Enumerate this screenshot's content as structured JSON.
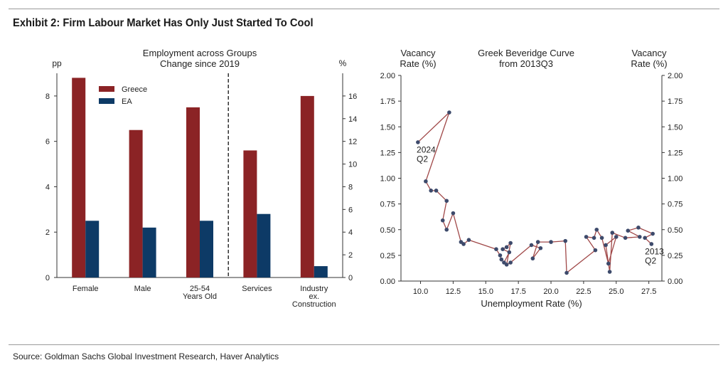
{
  "exhibit_title": "Exhibit 2: Firm Labour Market Has Only Just Started To Cool",
  "source": "Source: Goldman Sachs Global Investment Research, Haver Analytics",
  "colors": {
    "greece": "#8b2325",
    "ea": "#0d3a66",
    "line": "#a04848",
    "marker": "#3d4a6b"
  },
  "chart_data": [
    {
      "type": "bar",
      "title": [
        "Employment across Groups",
        "Change since 2019"
      ],
      "left_unit": "pp",
      "right_unit": "%",
      "categories": [
        [
          "Female"
        ],
        [
          "Male"
        ],
        [
          "25-54",
          "Years Old"
        ],
        [
          "Services"
        ],
        [
          "Industry",
          "ex.",
          "Construction"
        ]
      ],
      "ylim_left": [
        0,
        9
      ],
      "ylim_right": [
        0,
        18
      ],
      "yticks_left": [
        0,
        2,
        4,
        6,
        8
      ],
      "yticks_right": [
        0,
        2,
        4,
        6,
        8,
        10,
        12,
        14,
        16
      ],
      "divider_after_index": 2,
      "legend": "top-left",
      "series": [
        {
          "name": "Greece",
          "axis": "left",
          "values": [
            8.8,
            6.5,
            7.5,
            null,
            null
          ]
        },
        {
          "name": "EA",
          "axis": "left",
          "values": [
            2.5,
            2.2,
            2.5,
            null,
            null
          ]
        },
        {
          "name": "Greece",
          "axis": "right",
          "values": [
            null,
            null,
            null,
            11.2,
            16.0
          ]
        },
        {
          "name": "EA",
          "axis": "right",
          "values": [
            null,
            null,
            null,
            5.6,
            1.0
          ]
        }
      ]
    },
    {
      "type": "line",
      "title": [
        "Greek Beveridge Curve",
        "from 2013Q3"
      ],
      "left_axis_title": [
        "Vacancy",
        "Rate (%)"
      ],
      "right_axis_title": [
        "Vacancy",
        "Rate (%)"
      ],
      "xlabel": "Unemployment Rate (%)",
      "xlim": [
        8.5,
        28.5
      ],
      "ylim": [
        0,
        2.0
      ],
      "xticks": [
        "10.0",
        "12.5",
        "15.0",
        "17.5",
        "20.0",
        "22.5",
        "25.0",
        "27.5"
      ],
      "yticks": [
        "0.00",
        "0.25",
        "0.50",
        "0.75",
        "1.00",
        "1.25",
        "1.50",
        "1.75",
        "2.00"
      ],
      "annotations": [
        {
          "lines": [
            "2024",
            "Q2"
          ],
          "x": 9.7,
          "y": 1.25
        },
        {
          "lines": [
            "2013",
            "Q2"
          ],
          "x": 27.2,
          "y": 0.26
        }
      ],
      "x": [
        27.7,
        27.2,
        27.8,
        26.7,
        25.9,
        26.8,
        25.7,
        24.7,
        24.5,
        24.2,
        25.0,
        24.4,
        23.9,
        23.5,
        23.3,
        22.7,
        23.4,
        21.2,
        21.1,
        20.0,
        19.0,
        18.6,
        19.2,
        18.5,
        16.9,
        16.6,
        16.9,
        16.6,
        16.3,
        16.8,
        16.4,
        16.2,
        16.1,
        15.8,
        13.7,
        13.3,
        13.1,
        12.5,
        12.0,
        11.7,
        12.0,
        11.2,
        10.8,
        10.4,
        12.2,
        9.8
      ],
      "y": [
        0.36,
        0.42,
        0.46,
        0.52,
        0.49,
        0.43,
        0.42,
        0.47,
        0.09,
        0.35,
        0.43,
        0.17,
        0.42,
        0.5,
        0.42,
        0.43,
        0.3,
        0.08,
        0.39,
        0.38,
        0.38,
        0.22,
        0.32,
        0.35,
        0.18,
        0.16,
        0.37,
        0.33,
        0.31,
        0.28,
        0.18,
        0.21,
        0.25,
        0.31,
        0.4,
        0.36,
        0.38,
        0.66,
        0.5,
        0.59,
        0.78,
        0.88,
        0.88,
        0.97,
        1.64,
        1.35
      ]
    }
  ]
}
